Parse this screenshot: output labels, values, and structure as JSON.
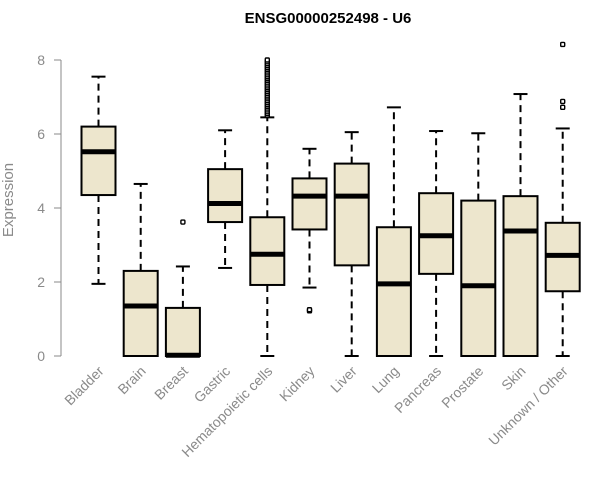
{
  "chart_data": {
    "type": "boxplot",
    "title": "ENSG00000252498 - U6",
    "xlabel": "",
    "ylabel": "Expression",
    "ylim": [
      0,
      8.4
    ],
    "yticks": [
      0,
      2,
      4,
      6,
      8
    ],
    "categories": [
      "Bladder",
      "Brain",
      "Breast",
      "Gastric",
      "Hematopoietic cells",
      "Kidney",
      "Liver",
      "Lung",
      "Pancreas",
      "Prostate",
      "Skin",
      "Unknown / Other"
    ],
    "series": [
      {
        "name": "Bladder",
        "whisker_low": 1.95,
        "q1": 4.35,
        "median": 5.52,
        "q3": 6.2,
        "whisker_high": 7.55,
        "outliers": []
      },
      {
        "name": "Brain",
        "whisker_low": 0,
        "q1": 0,
        "median": 1.35,
        "q3": 2.3,
        "whisker_high": 4.65,
        "outliers": []
      },
      {
        "name": "Breast",
        "whisker_low": 0,
        "q1": 0,
        "median": 0.02,
        "q3": 1.3,
        "whisker_high": 2.42,
        "outliers": [
          3.62
        ]
      },
      {
        "name": "Gastric",
        "whisker_low": 2.38,
        "q1": 3.62,
        "median": 4.12,
        "q3": 5.05,
        "whisker_high": 6.1,
        "outliers": []
      },
      {
        "name": "Hematopoietic cells",
        "whisker_low": 0,
        "q1": 1.92,
        "median": 2.75,
        "q3": 3.75,
        "whisker_high": 6.45,
        "outliers": [
          6.5,
          6.55,
          6.6,
          6.65,
          6.7,
          6.75,
          6.8,
          6.85,
          6.9,
          6.95,
          7.0,
          7.05,
          7.1,
          7.15,
          7.2,
          7.25,
          7.3,
          7.35,
          7.4,
          7.45,
          7.5,
          7.55,
          7.6,
          7.65,
          7.7,
          7.75,
          7.8,
          7.85,
          7.9,
          7.95,
          8.0
        ]
      },
      {
        "name": "Kidney",
        "whisker_low": 1.85,
        "q1": 3.42,
        "median": 4.32,
        "q3": 4.8,
        "whisker_high": 5.6,
        "outliers": [
          1.22,
          1.25
        ]
      },
      {
        "name": "Liver",
        "whisker_low": 0,
        "q1": 2.45,
        "median": 4.32,
        "q3": 5.2,
        "whisker_high": 6.05,
        "outliers": []
      },
      {
        "name": "Lung",
        "whisker_low": 0,
        "q1": 0,
        "median": 1.95,
        "q3": 3.48,
        "whisker_high": 6.72,
        "outliers": []
      },
      {
        "name": "Pancreas",
        "whisker_low": 0,
        "q1": 2.22,
        "median": 3.25,
        "q3": 4.4,
        "whisker_high": 6.08,
        "outliers": []
      },
      {
        "name": "Prostate",
        "whisker_low": 0,
        "q1": 0,
        "median": 1.9,
        "q3": 4.2,
        "whisker_high": 6.02,
        "outliers": []
      },
      {
        "name": "Skin",
        "whisker_low": 0,
        "q1": 0,
        "median": 3.38,
        "q3": 4.32,
        "whisker_high": 7.08,
        "outliers": []
      },
      {
        "name": "Unknown / Other",
        "whisker_low": 0,
        "q1": 1.75,
        "median": 2.72,
        "q3": 3.6,
        "whisker_high": 6.15,
        "outliers": [
          6.72,
          6.88,
          8.42
        ]
      }
    ],
    "colors": {
      "box_fill": "#ede6cd",
      "box_stroke": "#000000",
      "median": "#000000",
      "axis": "#8a8a8a",
      "outlier_stroke": "#000000"
    }
  }
}
